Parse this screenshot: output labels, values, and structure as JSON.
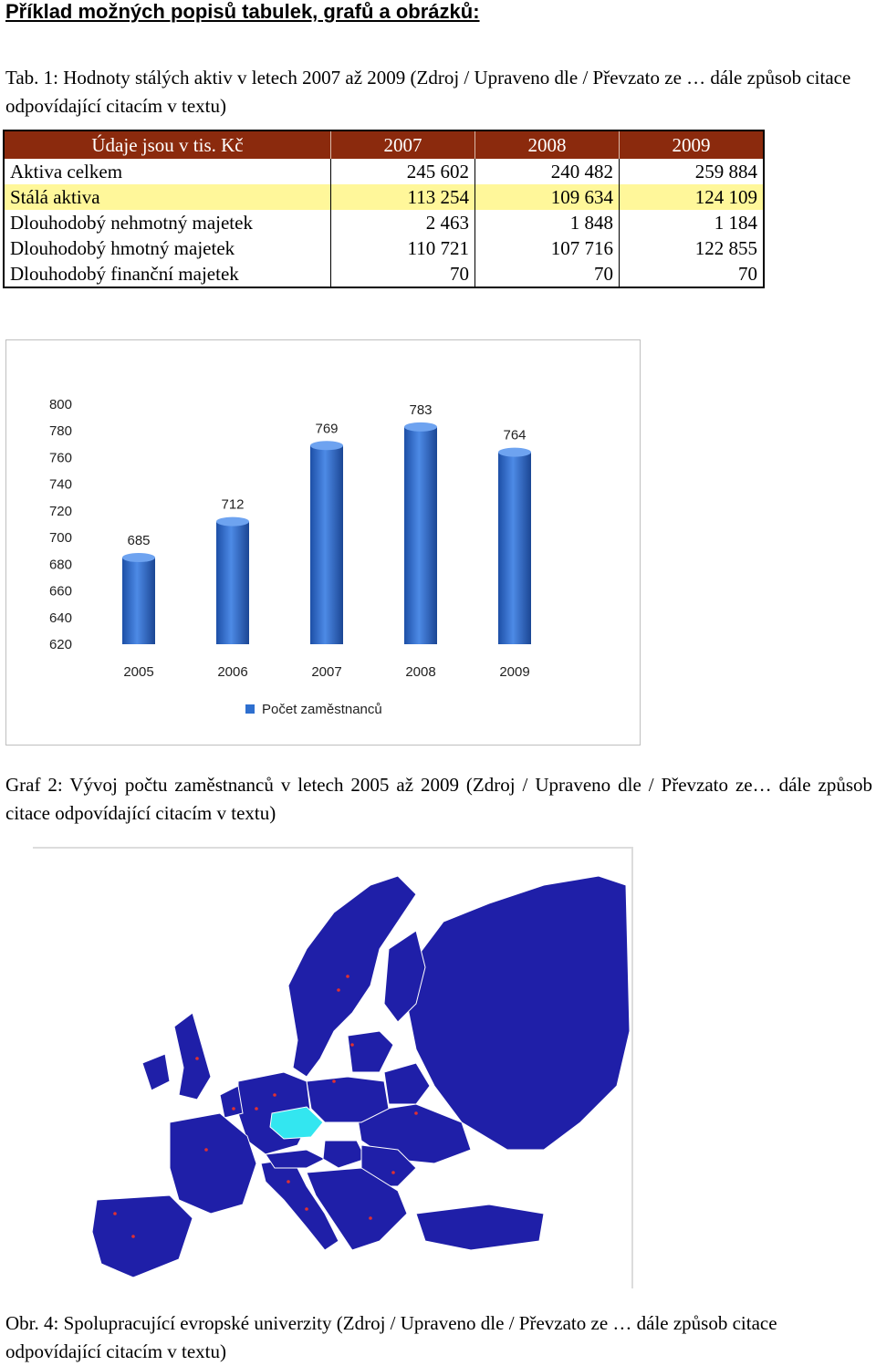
{
  "heading": "Příklad možných popisů tabulek, grafů a obrázků:",
  "table_caption": "Tab. 1: Hodnoty stálých aktiv v letech 2007 až 2009 (Zdroj / Upraveno dle / Převzato ze … dále způsob citace odpovídající citacím v textu)",
  "table": {
    "header": [
      "Údaje jsou v tis. Kč",
      "2007",
      "2008",
      "2009"
    ],
    "rows": [
      {
        "label": "Aktiva celkem",
        "values": [
          "245 602",
          "240 482",
          "259 884"
        ]
      },
      {
        "label": "Stálá aktiva",
        "values": [
          "113 254",
          "109 634",
          "124 109"
        ]
      },
      {
        "label": "Dlouhodobý nehmotný majetek",
        "values": [
          "2 463",
          "1 848",
          "1 184"
        ]
      },
      {
        "label": "Dlouhodobý hmotný majetek",
        "values": [
          "110 721",
          "107 716",
          "122 855"
        ]
      },
      {
        "label": "Dlouhodobý finanční majetek",
        "values": [
          "70",
          "70",
          "70"
        ]
      }
    ],
    "highlight_color": "#fff79a",
    "header_color": "#8b2a0d"
  },
  "chart_data": {
    "type": "bar",
    "categories": [
      "2005",
      "2006",
      "2007",
      "2008",
      "2009"
    ],
    "series": [
      {
        "name": "Počet zaměstnanců",
        "values": [
          685,
          712,
          769,
          783,
          764
        ]
      }
    ],
    "ylim": [
      620,
      800
    ],
    "yticks": [
      "620",
      "640",
      "660",
      "680",
      "700",
      "720",
      "740",
      "760",
      "780",
      "800"
    ],
    "data_labels": [
      "685",
      "712",
      "769",
      "783",
      "764"
    ],
    "legend_position": "bottom",
    "grid": false,
    "bar_color": "#2e6fcf"
  },
  "chart_caption": "Graf 2: Vývoj počtu zaměstnanců v letech 2005 až 2009 (Zdroj / Upraveno dle / Převzato ze… dále způsob citace odpovídající citacím v textu)",
  "map": {
    "icon": "europe-map-image",
    "country_color": "#1f1fa8",
    "highlight_color": "#33e6f0",
    "marker_color": "#e03030"
  },
  "map_caption": "Obr. 4: Spolupracující evropské univerzity (Zdroj / Upraveno dle / Převzato ze … dále způsob citace odpovídající citacím v textu)"
}
